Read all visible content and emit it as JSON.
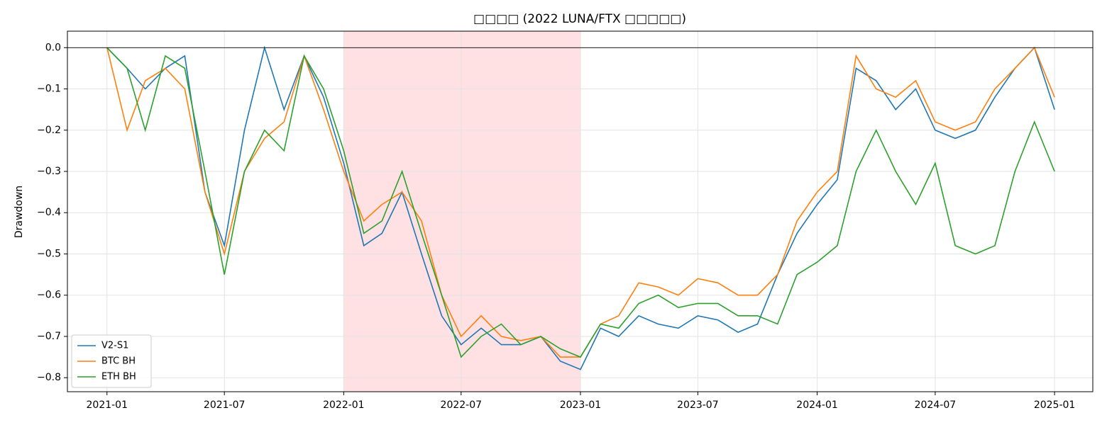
{
  "chart_data": {
    "type": "line",
    "title": "□□□□ (2022 LUNA/FTX □□□□□)",
    "y_label": "Drawdown",
    "x": [
      "2021-01",
      "2021-02",
      "2021-03",
      "2021-04",
      "2021-05",
      "2021-06",
      "2021-07",
      "2021-08",
      "2021-09",
      "2021-10",
      "2021-11",
      "2021-12",
      "2022-01",
      "2022-02",
      "2022-03",
      "2022-04",
      "2022-05",
      "2022-06",
      "2022-07",
      "2022-08",
      "2022-09",
      "2022-10",
      "2022-11",
      "2022-12",
      "2023-01",
      "2023-02",
      "2023-03",
      "2023-04",
      "2023-05",
      "2023-06",
      "2023-07",
      "2023-08",
      "2023-09",
      "2023-10",
      "2023-11",
      "2023-12",
      "2024-01",
      "2024-02",
      "2024-03",
      "2024-04",
      "2024-05",
      "2024-06",
      "2024-07",
      "2024-08",
      "2024-09",
      "2024-10",
      "2024-11",
      "2024-12",
      "2025-01"
    ],
    "series": [
      {
        "name": "V2-S1",
        "color": "#1f77b4",
        "values": [
          0.0,
          -0.05,
          -0.1,
          -0.05,
          -0.02,
          -0.35,
          -0.48,
          -0.2,
          0.0,
          -0.15,
          -0.02,
          -0.12,
          -0.28,
          -0.48,
          -0.45,
          -0.35,
          -0.5,
          -0.65,
          -0.72,
          -0.68,
          -0.72,
          -0.72,
          -0.7,
          -0.76,
          -0.78,
          -0.68,
          -0.7,
          -0.65,
          -0.67,
          -0.68,
          -0.65,
          -0.66,
          -0.69,
          -0.67,
          -0.55,
          -0.45,
          -0.38,
          -0.32,
          -0.05,
          -0.08,
          -0.15,
          -0.1,
          -0.2,
          -0.22,
          -0.2,
          -0.12,
          -0.05,
          0.0,
          -0.15
        ]
      },
      {
        "name": "BTC BH",
        "color": "#ff7f0e",
        "values": [
          0.0,
          -0.2,
          -0.08,
          -0.05,
          -0.1,
          -0.35,
          -0.5,
          -0.3,
          -0.22,
          -0.18,
          -0.02,
          -0.15,
          -0.3,
          -0.42,
          -0.38,
          -0.35,
          -0.42,
          -0.6,
          -0.7,
          -0.65,
          -0.7,
          -0.71,
          -0.7,
          -0.75,
          -0.75,
          -0.67,
          -0.65,
          -0.57,
          -0.58,
          -0.6,
          -0.56,
          -0.57,
          -0.6,
          -0.6,
          -0.55,
          -0.42,
          -0.35,
          -0.3,
          -0.02,
          -0.1,
          -0.12,
          -0.08,
          -0.18,
          -0.2,
          -0.18,
          -0.1,
          -0.05,
          0.0,
          -0.12
        ]
      },
      {
        "name": "ETH BH",
        "color": "#2ca02c",
        "values": [
          0.0,
          -0.05,
          -0.2,
          -0.02,
          -0.05,
          -0.3,
          -0.55,
          -0.3,
          -0.2,
          -0.25,
          -0.02,
          -0.1,
          -0.25,
          -0.45,
          -0.42,
          -0.3,
          -0.45,
          -0.6,
          -0.75,
          -0.7,
          -0.67,
          -0.72,
          -0.7,
          -0.73,
          -0.75,
          -0.67,
          -0.68,
          -0.62,
          -0.6,
          -0.63,
          -0.62,
          -0.62,
          -0.65,
          -0.65,
          -0.67,
          -0.55,
          -0.52,
          -0.48,
          -0.3,
          -0.2,
          -0.3,
          -0.38,
          -0.28,
          -0.48,
          -0.5,
          -0.48,
          -0.3,
          -0.18,
          -0.3
        ]
      }
    ],
    "xlim": [
      "2020-11",
      "2025-03"
    ],
    "xticks": [
      "2021-01",
      "2021-07",
      "2022-01",
      "2022-07",
      "2023-01",
      "2023-07",
      "2024-01",
      "2024-07",
      "2025-01"
    ],
    "ylim": [
      -0.834,
      0.04
    ],
    "yticks": [
      {
        "value": 0,
        "label": "0.0"
      },
      {
        "value": -0.1,
        "label": "−0.1"
      },
      {
        "value": -0.2,
        "label": "−0.2"
      },
      {
        "value": -0.3,
        "label": "−0.3"
      },
      {
        "value": -0.4,
        "label": "−0.4"
      },
      {
        "value": -0.5,
        "label": "−0.5"
      },
      {
        "value": -0.6,
        "label": "−0.6"
      },
      {
        "value": -0.7,
        "label": "−0.7"
      },
      {
        "value": -0.8,
        "label": "−0.8"
      }
    ],
    "zero_line": 0,
    "shade": {
      "from": "2022-01",
      "to": "2023-01",
      "color": "#ffe0e3"
    },
    "grid": true,
    "legend": "lower left"
  }
}
